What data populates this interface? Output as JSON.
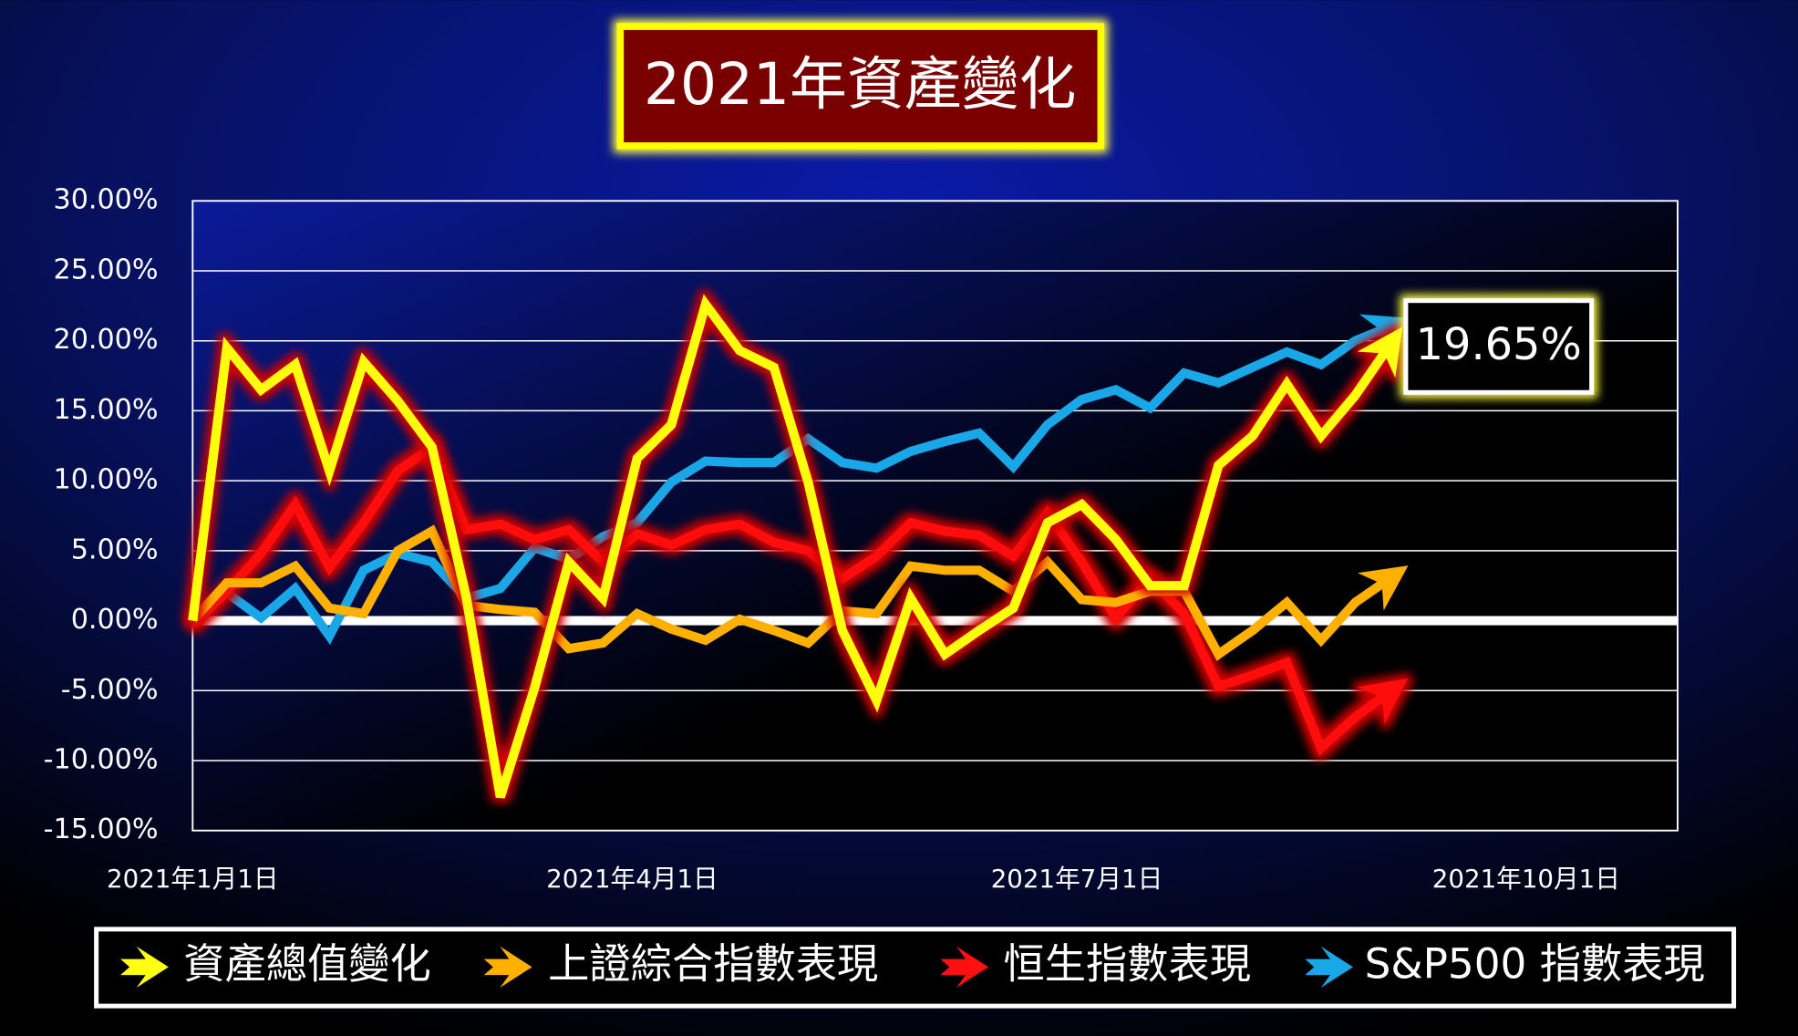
{
  "chart_data": {
    "type": "line",
    "title": "2021年資產變化",
    "annotation": "19.65%",
    "x": [
      "2021-01-01",
      "2021-01-08",
      "2021-01-15",
      "2021-01-22",
      "2021-01-29",
      "2021-02-05",
      "2021-02-12",
      "2021-02-19",
      "2021-02-26",
      "2021-03-05",
      "2021-03-12",
      "2021-03-19",
      "2021-03-26",
      "2021-04-02",
      "2021-04-09",
      "2021-04-16",
      "2021-04-23",
      "2021-04-30",
      "2021-05-07",
      "2021-05-14",
      "2021-05-21",
      "2021-05-28",
      "2021-06-04",
      "2021-06-11",
      "2021-06-18",
      "2021-06-25",
      "2021-07-02",
      "2021-07-09",
      "2021-07-16",
      "2021-07-23",
      "2021-07-30",
      "2021-08-06",
      "2021-08-13",
      "2021-08-20",
      "2021-08-27",
      "2021-09-03"
    ],
    "series": [
      {
        "name": "S&P500 指數表現",
        "color": "#1aa7e8",
        "values": [
          -0.3,
          2.0,
          0.2,
          2.3,
          -1.1,
          3.6,
          4.8,
          4.2,
          1.6,
          2.3,
          5.2,
          4.4,
          6.0,
          7.0,
          9.9,
          11.4,
          11.3,
          11.3,
          13.0,
          11.3,
          10.9,
          12.1,
          12.8,
          13.4,
          11.0,
          14.0,
          15.8,
          16.5,
          15.2,
          17.7,
          17.0,
          18.1,
          19.2,
          18.3,
          20.0,
          21.0
        ]
      },
      {
        "name": "恒生指數表現",
        "color": "#ff1010",
        "values": [
          -0.3,
          2.1,
          4.8,
          8.3,
          3.8,
          7.0,
          10.7,
          12.4,
          6.5,
          6.9,
          5.8,
          6.5,
          4.2,
          6.2,
          5.4,
          6.5,
          6.9,
          5.6,
          5.0,
          3.0,
          4.6,
          7.0,
          6.4,
          6.1,
          4.6,
          7.7,
          4.2,
          0.2,
          3.0,
          0.5,
          -4.7,
          -3.9,
          -3.0,
          -9.1,
          -6.9,
          -5.1
        ]
      },
      {
        "name": "上證綜合指數表現",
        "color": "#ffb000",
        "values": [
          0,
          2.7,
          2.7,
          3.9,
          0.9,
          0.5,
          5.0,
          6.4,
          1.1,
          0.8,
          0.6,
          -2.0,
          -1.6,
          0.5,
          -0.6,
          -1.4,
          0.1,
          -0.7,
          -1.6,
          0.7,
          0.5,
          3.9,
          3.6,
          3.6,
          2.1,
          4.2,
          1.5,
          1.3,
          2.1,
          2.1,
          -2.4,
          -0.7,
          1.3,
          -1.4,
          1.3,
          3.0
        ]
      },
      {
        "name": "資產總值變化",
        "color": "#ffff10",
        "values": [
          0,
          19.5,
          16.5,
          18.3,
          10.7,
          18.5,
          15.7,
          12.4,
          1.7,
          -12.6,
          -4.8,
          4.2,
          1.6,
          11.6,
          14.0,
          22.6,
          19.3,
          18.1,
          9.9,
          -0.7,
          -5.7,
          1.6,
          -2.4,
          -0.7,
          0.9,
          7.0,
          8.3,
          5.8,
          2.5,
          2.5,
          11.1,
          13.2,
          16.9,
          13.2,
          16.1,
          19.65
        ]
      }
    ],
    "legend_order": [
      3,
      2,
      1,
      0
    ],
    "xlim": [
      "2021-01-01",
      "2021-11-01"
    ],
    "xticks": [
      {
        "value": "2021-01-01",
        "label": "2021年1月1日"
      },
      {
        "value": "2021-04-01",
        "label": "2021年4月1日"
      },
      {
        "value": "2021-07-01",
        "label": "2021年7月1日"
      },
      {
        "value": "2021-10-01",
        "label": "2021年10月1日"
      }
    ],
    "ylim": [
      -15,
      30
    ],
    "yticks": [
      {
        "value": -15,
        "label": "-15.00%"
      },
      {
        "value": -10,
        "label": "-10.00%"
      },
      {
        "value": -5,
        "label": "-5.00%"
      },
      {
        "value": 0,
        "label": "0.00%"
      },
      {
        "value": 5,
        "label": "5.00%"
      },
      {
        "value": 10,
        "label": "10.00%"
      },
      {
        "value": 15,
        "label": "15.00%"
      },
      {
        "value": 20,
        "label": "20.00%"
      },
      {
        "value": 25,
        "label": "25.00%"
      },
      {
        "value": 30,
        "label": "30.00%"
      }
    ],
    "grid": true
  }
}
